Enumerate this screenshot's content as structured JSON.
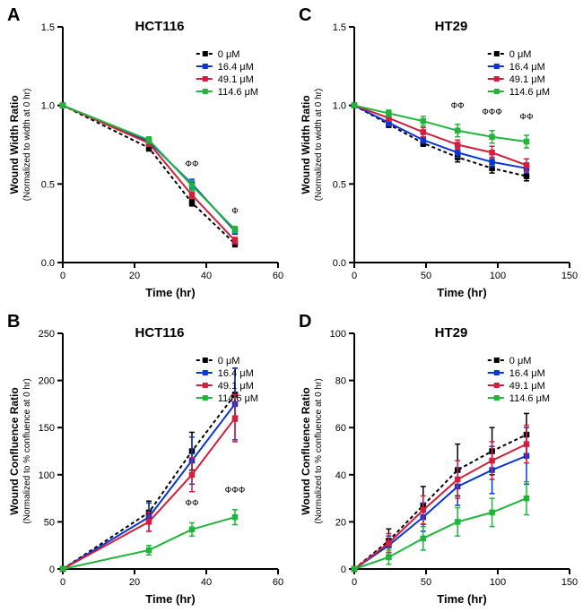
{
  "background_color": "#ffffff",
  "axis_color": "#000000",
  "axis_line_width": 2,
  "marker_style": "square",
  "marker_size": 5,
  "line_width": 2,
  "error_cap_width": 6,
  "panels": {
    "A": {
      "letter": "A",
      "title": "HCT116",
      "title_fontsize": 15,
      "xlabel": "Time (hr)",
      "ylabel": "Wound Width Ratio",
      "ysublabel": "(Normalized to width at 0 hr)",
      "xlim": [
        0,
        60
      ],
      "xtick_step": 20,
      "ylim": [
        0,
        1.5
      ],
      "ytick_step": 0.5,
      "legend_pos": "right-inside-top",
      "series": [
        {
          "name": "0 µM",
          "color": "#000000",
          "dash": "4,3",
          "label": "0 μM",
          "x": [
            0,
            24,
            36,
            48
          ],
          "y": [
            1.0,
            0.73,
            0.38,
            0.12
          ],
          "err": [
            0.0,
            0.02,
            0.02,
            0.02
          ]
        },
        {
          "name": "16.4 µM",
          "color": "#0a36d6",
          "dash": null,
          "label": "16.4 μM",
          "x": [
            0,
            24,
            36,
            48
          ],
          "y": [
            1.0,
            0.77,
            0.5,
            0.2
          ],
          "err": [
            0.0,
            0.02,
            0.03,
            0.02
          ]
        },
        {
          "name": "49.1 µM",
          "color": "#d21f3c",
          "dash": null,
          "label": "49.1 μM",
          "x": [
            0,
            24,
            36,
            48
          ],
          "y": [
            1.0,
            0.76,
            0.43,
            0.14
          ],
          "err": [
            0.0,
            0.02,
            0.02,
            0.02
          ]
        },
        {
          "name": "114.6 µM",
          "color": "#1fb53a",
          "dash": null,
          "label": "114.6 μM",
          "x": [
            0,
            24,
            36,
            48
          ],
          "y": [
            1.0,
            0.78,
            0.49,
            0.21
          ],
          "err": [
            0.0,
            0.02,
            0.03,
            0.02
          ]
        }
      ],
      "significance": [
        {
          "x": 36,
          "y_offset": 0.08,
          "text": "ФФ"
        },
        {
          "x": 48,
          "y_offset": 0.08,
          "text": "Ф"
        }
      ]
    },
    "B": {
      "letter": "B",
      "title": "HCT116",
      "title_fontsize": 15,
      "xlabel": "Time (hr)",
      "ylabel": "Wound Confluence  Ratio",
      "ysublabel": "(Normalized to % confluence at 0 hr)",
      "xlim": [
        0,
        60
      ],
      "xtick_step": 20,
      "ylim": [
        0,
        250
      ],
      "ytick_step": 50,
      "legend_pos": "right-inside-top",
      "series": [
        {
          "name": "0 µM",
          "color": "#000000",
          "dash": "4,3",
          "label": "0 μM",
          "x": [
            0,
            24,
            36,
            48
          ],
          "y": [
            0,
            60,
            125,
            185
          ],
          "err": [
            0,
            12,
            20,
            28
          ]
        },
        {
          "name": "16.4 µM",
          "color": "#0a36d6",
          "dash": null,
          "label": "16.4 μM",
          "x": [
            0,
            24,
            36,
            48
          ],
          "y": [
            0,
            55,
            115,
            175
          ],
          "err": [
            0,
            15,
            25,
            38
          ]
        },
        {
          "name": "49.1 µM",
          "color": "#d21f3c",
          "dash": null,
          "label": "49.1 μM",
          "x": [
            0,
            24,
            36,
            48
          ],
          "y": [
            0,
            50,
            100,
            160
          ],
          "err": [
            0,
            10,
            18,
            25
          ]
        },
        {
          "name": "114.6 µM",
          "color": "#1fb53a",
          "dash": null,
          "label": "114.6 μM",
          "x": [
            0,
            24,
            36,
            48
          ],
          "y": [
            0,
            20,
            42,
            55
          ],
          "err": [
            0,
            5,
            7,
            8
          ]
        }
      ],
      "significance": [
        {
          "x": 36,
          "y_offset": 18,
          "text": "ФФ"
        },
        {
          "x": 48,
          "y_offset": 18,
          "text": "ФФФ"
        }
      ],
      "significance_series_index": 3
    },
    "C": {
      "letter": "C",
      "title": "HT29",
      "title_fontsize": 15,
      "xlabel": "Time (hr)",
      "ylabel": "Wound Width Ratio",
      "ysublabel": "(Normalized to width at 0 hr)",
      "xlim": [
        0,
        150
      ],
      "xtick_step": 50,
      "ylim": [
        0,
        1.5
      ],
      "ytick_step": 0.5,
      "legend_pos": "right-inside-top",
      "series": [
        {
          "name": "0 µM",
          "color": "#000000",
          "dash": "4,3",
          "label": "0 μM",
          "x": [
            0,
            24,
            48,
            72,
            96,
            120
          ],
          "y": [
            1.0,
            0.88,
            0.76,
            0.67,
            0.6,
            0.55
          ],
          "err": [
            0,
            0.02,
            0.02,
            0.03,
            0.03,
            0.03
          ]
        },
        {
          "name": "16.4 µM",
          "color": "#0a36d6",
          "dash": null,
          "label": "16.4 μM",
          "x": [
            0,
            24,
            48,
            72,
            96,
            120
          ],
          "y": [
            1.0,
            0.89,
            0.78,
            0.7,
            0.64,
            0.6
          ],
          "err": [
            0,
            0.02,
            0.02,
            0.03,
            0.03,
            0.03
          ]
        },
        {
          "name": "49.1 µM",
          "color": "#d21f3c",
          "dash": null,
          "label": "49.1 μM",
          "x": [
            0,
            24,
            48,
            72,
            96,
            120
          ],
          "y": [
            1.0,
            0.92,
            0.83,
            0.75,
            0.7,
            0.62
          ],
          "err": [
            0,
            0.02,
            0.03,
            0.03,
            0.04,
            0.04
          ]
        },
        {
          "name": "114.6 µM",
          "color": "#1fb53a",
          "dash": null,
          "label": "114.6 μM",
          "x": [
            0,
            24,
            48,
            72,
            96,
            120
          ],
          "y": [
            1.0,
            0.95,
            0.9,
            0.84,
            0.8,
            0.77
          ],
          "err": [
            0,
            0.02,
            0.03,
            0.04,
            0.04,
            0.04
          ]
        }
      ],
      "significance": [
        {
          "x": 72,
          "y_offset": 0.1,
          "text": "ФФ"
        },
        {
          "x": 96,
          "y_offset": 0.1,
          "text": "ФФФ"
        },
        {
          "x": 120,
          "y_offset": 0.1,
          "text": "ФФ"
        }
      ],
      "significance_series_index": 3
    },
    "D": {
      "letter": "D",
      "title": "HT29",
      "title_fontsize": 15,
      "xlabel": "Time (hr)",
      "ylabel": "Wound Confluence  Ratio",
      "ysublabel": "(Normalized to % confluence at 0 hr)",
      "xlim": [
        0,
        150
      ],
      "xtick_step": 50,
      "ylim": [
        0,
        100
      ],
      "ytick_step": 20,
      "legend_pos": "right-inside-top",
      "series": [
        {
          "name": "0 µM",
          "color": "#000000",
          "dash": "4,3",
          "label": "0 μM",
          "x": [
            0,
            24,
            48,
            72,
            96,
            120
          ],
          "y": [
            0,
            12,
            27,
            42,
            50,
            57
          ],
          "err": [
            0,
            5,
            8,
            11,
            10,
            9
          ]
        },
        {
          "name": "16.4 µM",
          "color": "#0a36d6",
          "dash": null,
          "label": "16.4 μM",
          "x": [
            0,
            24,
            48,
            72,
            96,
            120
          ],
          "y": [
            0,
            10,
            22,
            35,
            42,
            48
          ],
          "err": [
            0,
            4,
            6,
            8,
            10,
            12
          ]
        },
        {
          "name": "49.1 µM",
          "color": "#d21f3c",
          "dash": null,
          "label": "49.1 μM",
          "x": [
            0,
            24,
            48,
            72,
            96,
            120
          ],
          "y": [
            0,
            11,
            25,
            38,
            46,
            53
          ],
          "err": [
            0,
            4,
            6,
            8,
            8,
            8
          ]
        },
        {
          "name": "114.6 µM",
          "color": "#1fb53a",
          "dash": null,
          "label": "114.6 μM",
          "x": [
            0,
            24,
            48,
            72,
            96,
            120
          ],
          "y": [
            0,
            5,
            13,
            20,
            24,
            30
          ],
          "err": [
            0,
            3,
            5,
            6,
            6,
            7
          ]
        }
      ],
      "significance": []
    }
  },
  "panel_order": [
    "A",
    "C",
    "B",
    "D"
  ]
}
